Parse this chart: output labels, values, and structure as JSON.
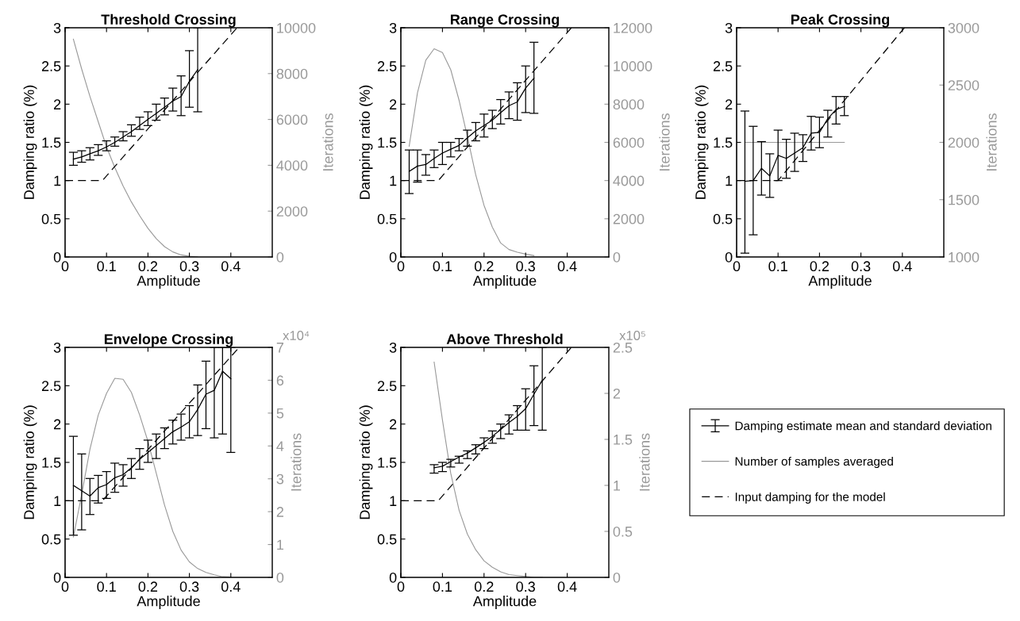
{
  "chart_data": [
    {
      "type": "line",
      "title": "Threshold Crossing",
      "xlabel": "Amplitude",
      "ylabel": "Damping ratio (%)",
      "y2label": "Iterations",
      "x": [
        0.02,
        0.04,
        0.06,
        0.08,
        0.1,
        0.12,
        0.14,
        0.16,
        0.18,
        0.2,
        0.22,
        0.24,
        0.26,
        0.28,
        0.3,
        0.32
      ],
      "xlim": [
        0,
        0.5
      ],
      "xticks": [
        0,
        0.1,
        0.2,
        0.3,
        0.4
      ],
      "ylim": [
        0,
        3
      ],
      "yticks": [
        0,
        0.5,
        1,
        1.5,
        2,
        2.5,
        3
      ],
      "y2lim": [
        0,
        10000
      ],
      "y2ticks": [
        0,
        2000,
        4000,
        6000,
        8000,
        10000
      ],
      "series": [
        {
          "color": "#000000",
          "values": [
            1.28,
            1.31,
            1.35,
            1.39,
            1.44,
            1.5,
            1.57,
            1.64,
            1.72,
            1.8,
            1.88,
            1.96,
            2.04,
            2.1,
            2.3,
            2.45
          ],
          "errors": [
            [
              1.2,
              1.37
            ],
            [
              1.24,
              1.39
            ],
            [
              1.27,
              1.43
            ],
            [
              1.33,
              1.47
            ],
            [
              1.39,
              1.52
            ],
            [
              1.45,
              1.57
            ],
            [
              1.52,
              1.64
            ],
            [
              1.58,
              1.73
            ],
            [
              1.67,
              1.83
            ],
            [
              1.72,
              1.9
            ],
            [
              1.79,
              2.0
            ],
            [
              1.86,
              2.08
            ],
            [
              1.91,
              2.21
            ],
            [
              1.85,
              2.37
            ],
            [
              1.96,
              2.7
            ],
            [
              1.9,
              3.0
            ]
          ]
        },
        {
          "color": "#999999",
          "axis": "y2",
          "values": [
            9500,
            8200,
            7000,
            5900,
            4800,
            3900,
            3100,
            2400,
            1800,
            1250,
            800,
            450,
            220,
            90,
            30,
            0
          ]
        },
        {
          "color": "#000000",
          "line_style": "dashed",
          "x": [
            0,
            0.09,
            0.415
          ],
          "values": [
            1,
            1,
            3
          ]
        }
      ]
    },
    {
      "type": "line",
      "title": "Range Crossing",
      "xlabel": "Amplitude",
      "ylabel": "Damping ratio (%)",
      "y2label": "Iterations",
      "x": [
        0.02,
        0.04,
        0.06,
        0.08,
        0.1,
        0.12,
        0.14,
        0.16,
        0.18,
        0.2,
        0.22,
        0.24,
        0.26,
        0.28,
        0.3,
        0.32
      ],
      "xlim": [
        0,
        0.5
      ],
      "xticks": [
        0,
        0.1,
        0.2,
        0.3,
        0.4
      ],
      "ylim": [
        0,
        3
      ],
      "yticks": [
        0,
        0.5,
        1,
        1.5,
        2,
        2.5,
        3
      ],
      "y2lim": [
        0,
        12000
      ],
      "y2ticks": [
        0,
        2000,
        4000,
        6000,
        8000,
        10000,
        12000
      ],
      "series": [
        {
          "color": "#000000",
          "values": [
            1.12,
            1.19,
            1.21,
            1.29,
            1.36,
            1.41,
            1.46,
            1.56,
            1.65,
            1.72,
            1.79,
            1.89,
            1.98,
            2.03,
            2.21,
            2.34
          ],
          "errors": [
            [
              0.83,
              1.4
            ],
            [
              0.98,
              1.4
            ],
            [
              1.07,
              1.34
            ],
            [
              1.17,
              1.4
            ],
            [
              1.21,
              1.5
            ],
            [
              1.31,
              1.5
            ],
            [
              1.39,
              1.55
            ],
            [
              1.45,
              1.66
            ],
            [
              1.52,
              1.76
            ],
            [
              1.57,
              1.87
            ],
            [
              1.68,
              1.92
            ],
            [
              1.74,
              2.06
            ],
            [
              1.81,
              2.16
            ],
            [
              1.79,
              2.28
            ],
            [
              1.89,
              2.5
            ],
            [
              1.88,
              2.81
            ]
          ]
        },
        {
          "color": "#999999",
          "axis": "y2",
          "values": [
            5800,
            8600,
            10300,
            10900,
            10700,
            9800,
            8200,
            6300,
            4300,
            2700,
            1560,
            730,
            390,
            250,
            150,
            70
          ]
        },
        {
          "color": "#000000",
          "line_style": "dashed",
          "x": [
            0,
            0.09,
            0.41
          ],
          "values": [
            1,
            1,
            3
          ]
        }
      ]
    },
    {
      "type": "line",
      "title": "Peak Crossing",
      "xlabel": "Amplitude",
      "ylabel": "Damping ratio (%)",
      "y2label": "Iterations",
      "x": [
        0.02,
        0.04,
        0.06,
        0.08,
        0.1,
        0.12,
        0.14,
        0.16,
        0.18,
        0.2,
        0.22,
        0.24,
        0.26
      ],
      "xlim": [
        0,
        0.5
      ],
      "xticks": [
        0,
        0.1,
        0.2,
        0.3,
        0.4
      ],
      "ylim": [
        0,
        3
      ],
      "yticks": [
        0,
        0.5,
        1,
        1.5,
        2,
        2.5,
        3
      ],
      "y2lim": [
        1000,
        3000
      ],
      "y2ticks": [
        1000,
        1500,
        2000,
        2500,
        3000
      ],
      "series": [
        {
          "color": "#000000",
          "values": [
            0.99,
            1.0,
            1.16,
            1.06,
            1.33,
            1.29,
            1.36,
            1.43,
            1.62,
            1.63,
            1.81,
            1.93,
            1.97
          ],
          "errors": [
            [
              0.05,
              1.91
            ],
            [
              0.29,
              1.71
            ],
            [
              0.81,
              1.51
            ],
            [
              0.78,
              1.35
            ],
            [
              1.0,
              1.66
            ],
            [
              1.03,
              1.54
            ],
            [
              1.12,
              1.62
            ],
            [
              1.25,
              1.6
            ],
            [
              1.4,
              1.84
            ],
            [
              1.43,
              1.83
            ],
            [
              1.57,
              1.92
            ],
            [
              1.74,
              2.1
            ],
            [
              1.85,
              2.1
            ]
          ]
        },
        {
          "color": "#999999",
          "axis": "y2",
          "values": [
            2000,
            2000,
            2000,
            2000,
            2000,
            2000,
            2000,
            2000,
            2000,
            2000,
            2000,
            2000,
            2000
          ]
        },
        {
          "color": "#000000",
          "line_style": "dashed",
          "x": [
            0,
            0.1,
            0.405
          ],
          "values": [
            1,
            1,
            3
          ]
        }
      ]
    },
    {
      "type": "line",
      "title": "Envelope Crossing",
      "xlabel": "Amplitude",
      "ylabel": "Damping ratio (%)",
      "y2label": "Iterations",
      "annotations": [
        "x10⁴"
      ],
      "x": [
        0.02,
        0.04,
        0.06,
        0.08,
        0.1,
        0.12,
        0.14,
        0.16,
        0.18,
        0.2,
        0.22,
        0.24,
        0.26,
        0.28,
        0.3,
        0.32,
        0.34,
        0.36,
        0.38,
        0.4
      ],
      "xlim": [
        0,
        0.5
      ],
      "xticks": [
        0,
        0.1,
        0.2,
        0.3,
        0.4
      ],
      "ylim": [
        0,
        3
      ],
      "yticks": [
        0,
        0.5,
        1,
        1.5,
        2,
        2.5,
        3
      ],
      "y2lim": [
        0,
        7
      ],
      "y2ticks": [
        0,
        1,
        2,
        3,
        4,
        5,
        6,
        7
      ],
      "series": [
        {
          "color": "#000000",
          "values": [
            1.2,
            1.13,
            1.06,
            1.17,
            1.21,
            1.3,
            1.34,
            1.43,
            1.54,
            1.63,
            1.72,
            1.81,
            1.9,
            1.96,
            2.03,
            2.19,
            2.39,
            2.44,
            2.69,
            2.59
          ],
          "errors": [
            [
              0.55,
              1.84
            ],
            [
              0.62,
              1.61
            ],
            [
              0.82,
              1.29
            ],
            [
              0.97,
              1.33
            ],
            [
              1.03,
              1.38
            ],
            [
              1.11,
              1.49
            ],
            [
              1.19,
              1.47
            ],
            [
              1.29,
              1.55
            ],
            [
              1.41,
              1.68
            ],
            [
              1.5,
              1.79
            ],
            [
              1.55,
              1.87
            ],
            [
              1.68,
              1.95
            ],
            [
              1.74,
              2.05
            ],
            [
              1.79,
              2.13
            ],
            [
              1.82,
              2.24
            ],
            [
              1.85,
              2.51
            ],
            [
              1.94,
              2.82
            ],
            [
              1.82,
              3.0
            ],
            [
              1.87,
              3.0
            ],
            [
              1.63,
              3.0
            ]
          ]
        },
        {
          "color": "#999999",
          "axis": "y2",
          "values": [
            1.23,
            2.52,
            3.9,
            4.94,
            5.6,
            6.06,
            6.03,
            5.63,
            4.94,
            4.14,
            3.17,
            2.2,
            1.4,
            0.83,
            0.47,
            0.27,
            0.15,
            0.08,
            0.02,
            0.01
          ]
        },
        {
          "color": "#000000",
          "line_style": "dashed",
          "x": [
            0,
            0.09,
            0.42
          ],
          "values": [
            1,
            1,
            3
          ]
        }
      ]
    },
    {
      "type": "line",
      "title": "Above Threshold",
      "xlabel": "Amplitude",
      "ylabel": "Damping ratio (%)",
      "y2label": "Iterations",
      "annotations": [
        "x10⁵"
      ],
      "legend": "right",
      "x": [
        0.08,
        0.1,
        0.12,
        0.14,
        0.16,
        0.18,
        0.2,
        0.22,
        0.24,
        0.26,
        0.28,
        0.3,
        0.32,
        0.34
      ],
      "xlim": [
        0,
        0.5
      ],
      "xticks": [
        0,
        0.1,
        0.2,
        0.3,
        0.4
      ],
      "ylim": [
        0,
        3
      ],
      "yticks": [
        0,
        0.5,
        1,
        1.5,
        2,
        2.5,
        3
      ],
      "y2lim": [
        0,
        2.5
      ],
      "y2ticks": [
        0,
        0.5,
        1,
        1.5,
        2,
        2.5
      ],
      "series": [
        {
          "name": "Damping estimate mean and standard deviation",
          "color": "#000000",
          "values": [
            1.43,
            1.45,
            1.51,
            1.57,
            1.62,
            1.69,
            1.76,
            1.84,
            1.93,
            2.02,
            2.1,
            2.2,
            2.39,
            2.57
          ],
          "errors": [
            [
              1.36,
              1.47
            ],
            [
              1.38,
              1.5
            ],
            [
              1.44,
              1.54
            ],
            [
              1.49,
              1.58
            ],
            [
              1.55,
              1.65
            ],
            [
              1.61,
              1.73
            ],
            [
              1.68,
              1.82
            ],
            [
              1.75,
              1.91
            ],
            [
              1.81,
              2.0
            ],
            [
              1.87,
              2.12
            ],
            [
              1.92,
              2.24
            ],
            [
              1.92,
              2.46
            ],
            [
              1.98,
              2.76
            ],
            [
              1.92,
              3.0
            ]
          ]
        },
        {
          "name": "Number of samples averaged",
          "color": "#999999",
          "axis": "y2",
          "values": [
            2.34,
            1.71,
            1.13,
            0.73,
            0.47,
            0.3,
            0.18,
            0.11,
            0.06,
            0.03,
            0.02,
            0.01,
            0,
            0
          ]
        },
        {
          "name": "Input damping for the model",
          "color": "#000000",
          "line_style": "dashed",
          "x": [
            0,
            0.09,
            0.41
          ],
          "values": [
            1,
            1,
            3
          ]
        }
      ]
    }
  ]
}
